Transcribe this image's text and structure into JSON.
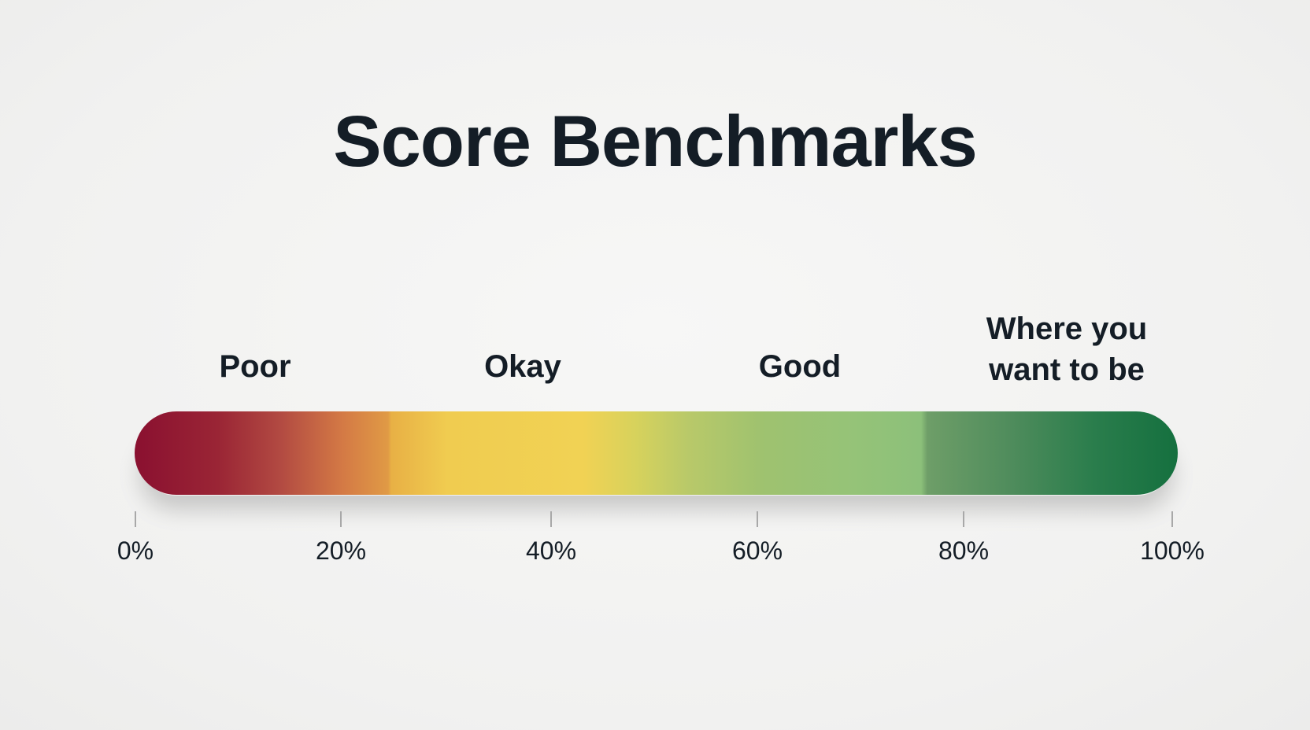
{
  "title": "Score Benchmarks",
  "bands": [
    {
      "label": "Poor"
    },
    {
      "label": "Okay"
    },
    {
      "label": "Good"
    },
    {
      "label": "Where you\nwant to be"
    }
  ],
  "scale": {
    "ticks": [
      "0%",
      "20%",
      "40%",
      "60%",
      "80%",
      "100%"
    ]
  },
  "colors": {
    "start": "#8a1030",
    "middle": "#f1d254",
    "good": "#95c378",
    "end": "#15703f"
  }
}
